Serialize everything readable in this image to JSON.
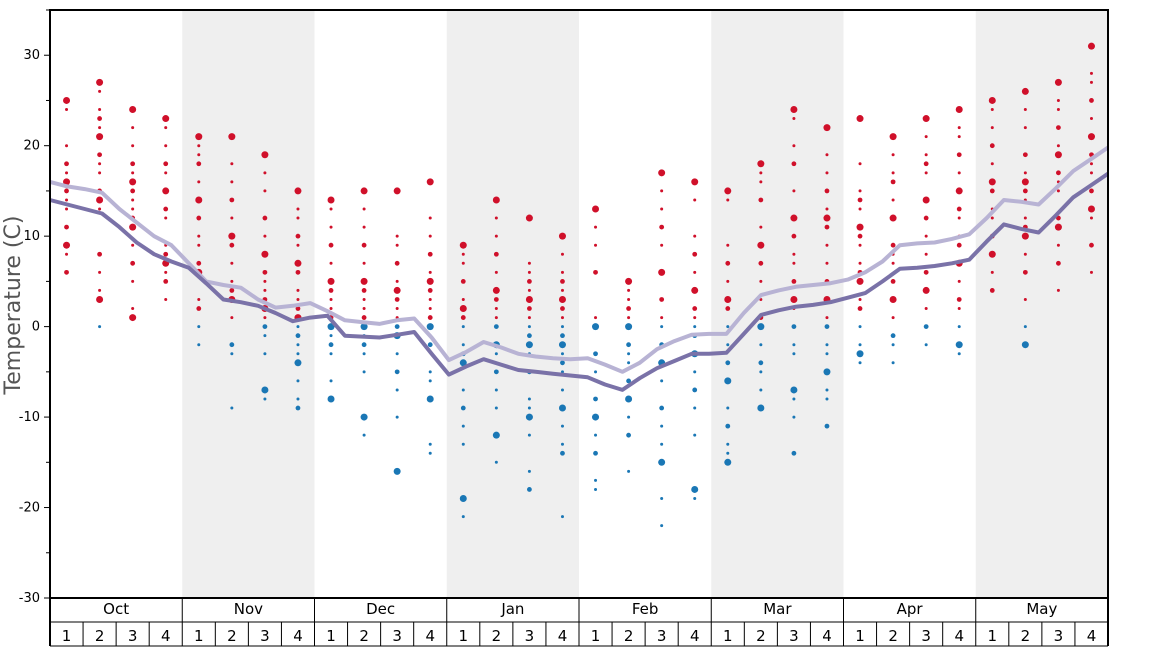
{
  "chart_data": {
    "type": "scatter",
    "ylabel": "Temperature (C)",
    "ylim": [
      -30,
      35
    ],
    "yticks": [
      -30,
      -20,
      -10,
      0,
      10,
      20,
      30
    ],
    "months": [
      "Oct",
      "Nov",
      "Dec",
      "Jan",
      "Feb",
      "Mar",
      "Apr",
      "May"
    ],
    "weeks": [
      "1",
      "2",
      "3",
      "4"
    ],
    "colors": {
      "warm_point": "#d0102a",
      "cold_point": "#1a77b5",
      "max_line": "#b8b3d4",
      "min_line": "#7a72a8",
      "shade": "#efefef"
    },
    "series": [
      {
        "values": [
          16.0,
          15.5,
          15.2,
          14.8,
          13.0,
          11.5,
          10.0,
          9.0,
          7.0,
          5.0,
          4.6,
          4.3,
          3.0,
          2.1,
          2.3,
          2.6,
          1.7,
          0.7,
          0.5,
          0.3,
          0.7,
          0.9,
          -1.2,
          -3.7,
          -2.8,
          -1.7,
          -2.3,
          -3.0,
          -3.3,
          -3.5,
          -3.6,
          -3.5,
          -4.2,
          -5.0,
          -4.0,
          -2.5,
          -1.6,
          -0.9,
          -0.8,
          -0.8,
          1.5,
          3.5,
          4.0,
          4.4,
          4.6,
          4.8,
          5.2,
          6.0,
          7.2,
          9.0,
          9.2,
          9.3,
          9.7,
          10.2,
          12.0,
          14.0,
          13.8,
          13.5,
          15.3,
          17.2,
          18.5,
          19.8
        ]
      },
      {
        "values": [
          14.0,
          13.5,
          13.0,
          12.5,
          11.0,
          9.3,
          8.0,
          7.2,
          6.5,
          4.8,
          3.0,
          2.7,
          2.3,
          1.5,
          0.6,
          1.0,
          1.2,
          -1.0,
          -1.1,
          -1.2,
          -0.9,
          -0.6,
          -3.0,
          -5.3,
          -4.4,
          -3.6,
          -4.2,
          -4.8,
          -5.0,
          -5.2,
          -5.4,
          -5.6,
          -6.4,
          -7.0,
          -5.7,
          -4.6,
          -3.8,
          -3.0,
          -3.0,
          -2.9,
          -0.8,
          1.3,
          1.8,
          2.2,
          2.4,
          2.7,
          3.2,
          3.7,
          5.0,
          6.4,
          6.5,
          6.7,
          7.0,
          7.4,
          9.4,
          11.3,
          10.8,
          10.4,
          12.3,
          14.3,
          15.6,
          16.9
        ]
      }
    ],
    "points": [
      [
        25,
        24,
        20,
        18,
        17,
        16,
        15,
        14,
        13,
        11,
        9,
        8,
        6
      ],
      [
        27,
        26,
        24,
        23,
        22,
        21,
        19,
        18,
        17,
        15,
        14,
        13,
        8,
        6,
        4,
        3,
        0
      ],
      [
        24,
        22,
        20,
        18,
        17,
        16,
        15,
        14,
        13,
        12,
        11,
        9,
        7,
        5,
        2,
        1
      ],
      [
        23,
        22,
        20,
        18,
        17,
        15,
        13,
        12,
        9,
        8,
        7,
        6,
        5,
        3
      ],
      [
        21,
        20,
        19,
        18,
        16,
        14,
        12,
        10,
        9,
        7,
        6,
        3,
        2,
        0,
        -2
      ],
      [
        21,
        18,
        16,
        14,
        12,
        10,
        9,
        7,
        5,
        4,
        3,
        1,
        -2,
        -3,
        -9
      ],
      [
        19,
        17,
        15,
        12,
        10,
        8,
        6,
        5,
        4,
        3,
        2,
        1,
        0,
        -1,
        -3,
        -7,
        -8
      ],
      [
        15,
        13,
        12,
        10,
        9,
        7,
        6,
        4,
        3,
        2,
        1,
        0,
        -1,
        -2,
        -3,
        -4,
        -6,
        -8,
        -9
      ],
      [
        14,
        13,
        11,
        9,
        7,
        5,
        4,
        3,
        2,
        1,
        0,
        -1,
        -2,
        -3,
        -6,
        -8
      ],
      [
        15,
        13,
        11,
        9,
        7,
        5,
        4,
        3,
        2,
        1,
        0,
        -1,
        -2,
        -3,
        -5,
        -10,
        -12
      ],
      [
        15,
        10,
        9,
        7,
        5,
        4,
        3,
        2,
        1,
        0,
        -1,
        -3,
        -5,
        -7,
        -10,
        -16
      ],
      [
        16,
        12,
        10,
        8,
        6,
        5,
        4,
        3,
        2,
        1,
        0,
        -1,
        -2,
        -5,
        -6,
        -8,
        -13,
        -14
      ],
      [
        9,
        8,
        7,
        5,
        3,
        2,
        1,
        0,
        -2,
        -3,
        -4,
        -7,
        -9,
        -11,
        -13,
        -19,
        -21
      ],
      [
        14,
        12,
        10,
        8,
        6,
        4,
        3,
        2,
        1,
        0,
        -2,
        -3,
        -5,
        -7,
        -9,
        -12,
        -15
      ],
      [
        12,
        7,
        6,
        5,
        4,
        3,
        2,
        1,
        0,
        -1,
        -2,
        -3,
        -5,
        -8,
        -9,
        -10,
        -12,
        -16,
        -18
      ],
      [
        10,
        8,
        6,
        5,
        4,
        3,
        2,
        1,
        0,
        -1,
        -2,
        -3,
        -4,
        -5,
        -7,
        -9,
        -11,
        -13,
        -14,
        -21
      ],
      [
        13,
        11,
        9,
        6,
        1,
        0,
        -3,
        -5,
        -6,
        -8,
        -10,
        -12,
        -14,
        -17,
        -18
      ],
      [
        5,
        4,
        3,
        2,
        1,
        0,
        -2,
        -3,
        -4,
        -6,
        -8,
        -10,
        -12,
        -16
      ],
      [
        17,
        15,
        13,
        11,
        9,
        6,
        3,
        1,
        0,
        -2,
        -4,
        -6,
        -9,
        -11,
        -13,
        -15,
        -19,
        -22
      ],
      [
        16,
        14,
        10,
        8,
        6,
        4,
        2,
        1,
        0,
        -1,
        -3,
        -5,
        -7,
        -9,
        -12,
        -18,
        -19
      ],
      [
        15,
        14,
        9,
        7,
        5,
        3,
        2,
        0,
        -2,
        -4,
        -6,
        -9,
        -11,
        -13,
        -14,
        -15
      ],
      [
        18,
        17,
        16,
        14,
        11,
        9,
        7,
        5,
        3,
        1,
        0,
        -2,
        -4,
        -5,
        -7,
        -9
      ],
      [
        24,
        23,
        20,
        18,
        15,
        12,
        10,
        8,
        7,
        5,
        3,
        2,
        0,
        -2,
        -3,
        -7,
        -8,
        -10,
        -14
      ],
      [
        22,
        19,
        17,
        15,
        13,
        12,
        11,
        9,
        7,
        5,
        3,
        1,
        0,
        -2,
        -3,
        -5,
        -7,
        -8,
        -11
      ],
      [
        23,
        18,
        15,
        14,
        13,
        11,
        10,
        9,
        7,
        6,
        5,
        3,
        2,
        0,
        -2,
        -3,
        -4
      ],
      [
        21,
        19,
        17,
        16,
        14,
        12,
        9,
        8,
        7,
        5,
        3,
        1,
        -1,
        -2,
        -4
      ],
      [
        23,
        21,
        19,
        18,
        17,
        14,
        12,
        10,
        8,
        6,
        4,
        2,
        0,
        -2
      ],
      [
        24,
        22,
        21,
        19,
        17,
        15,
        13,
        12,
        10,
        9,
        7,
        5,
        3,
        2,
        0,
        -2,
        -3
      ],
      [
        25,
        24,
        22,
        20,
        18,
        16,
        15,
        13,
        12,
        10,
        8,
        6,
        4
      ],
      [
        26,
        24,
        22,
        19,
        17,
        16,
        15,
        14,
        12,
        11,
        10,
        8,
        6,
        3,
        0,
        -2
      ],
      [
        27,
        25,
        24,
        22,
        20,
        19,
        17,
        16,
        15,
        12,
        11,
        9,
        7,
        4
      ],
      [
        31,
        28,
        27,
        25,
        23,
        21,
        19,
        18,
        17,
        15,
        13,
        12,
        9,
        6
      ]
    ]
  }
}
